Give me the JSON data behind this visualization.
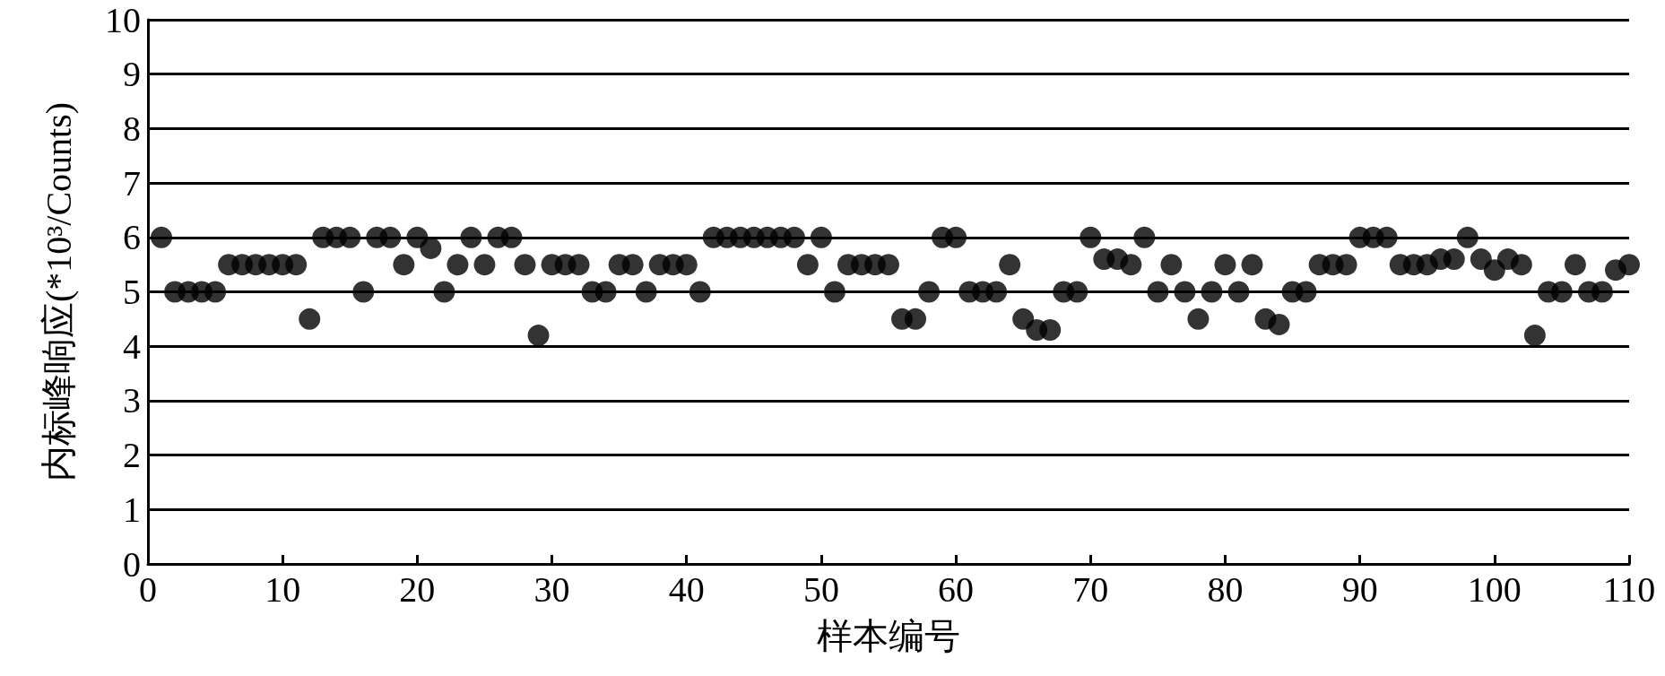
{
  "chart_data": {
    "type": "scatter",
    "xlabel": "样本编号",
    "ylabel": "内标峰响应(*10³/Counts)",
    "x": [
      1,
      2,
      3,
      4,
      5,
      6,
      7,
      8,
      9,
      10,
      11,
      12,
      13,
      14,
      15,
      16,
      17,
      18,
      19,
      20,
      21,
      22,
      23,
      24,
      25,
      26,
      27,
      28,
      29,
      30,
      31,
      32,
      33,
      34,
      35,
      36,
      37,
      38,
      39,
      40,
      41,
      42,
      43,
      44,
      45,
      46,
      47,
      48,
      49,
      50,
      51,
      52,
      53,
      54,
      55,
      56,
      57,
      58,
      59,
      60,
      61,
      62,
      63,
      64,
      65,
      66,
      67,
      68,
      69,
      70,
      71,
      72,
      73,
      74,
      75,
      76,
      77,
      78,
      79,
      80,
      81,
      82,
      83,
      84,
      85,
      86,
      87,
      88,
      89,
      90,
      91,
      92,
      93,
      94,
      95,
      96,
      97,
      98,
      99,
      100,
      101,
      102,
      103,
      104,
      105,
      106,
      107,
      108,
      109,
      110
    ],
    "values": [
      6,
      5,
      5,
      5,
      5,
      5.5,
      5.5,
      5.5,
      5.5,
      5.5,
      5.5,
      4.5,
      6,
      6,
      6,
      5,
      6,
      6,
      5.5,
      6,
      5.8,
      5,
      5.5,
      6,
      5.5,
      6,
      6,
      5.5,
      4.2,
      5.5,
      5.5,
      5.5,
      5,
      5,
      5.5,
      5.5,
      5,
      5.5,
      5.5,
      5.5,
      5,
      6,
      6,
      6,
      6,
      6,
      6,
      6,
      5.5,
      6,
      5,
      5.5,
      5.5,
      5.5,
      5.5,
      4.5,
      4.5,
      5,
      6,
      6,
      5,
      5,
      5,
      5.5,
      4.5,
      4.3,
      4.3,
      5,
      5,
      6,
      5.6,
      5.6,
      5.5,
      6,
      5,
      5.5,
      5,
      4.5,
      5,
      5.5,
      5,
      5.5,
      4.5,
      4.4,
      5,
      5,
      5.5,
      5.5,
      5.5,
      6,
      6,
      6,
      5.5,
      5.5,
      5.5,
      5.6,
      5.6,
      6,
      5.6,
      5.4,
      5.6,
      5.5,
      4.2,
      5,
      5,
      5.5,
      5,
      5,
      5.4,
      5.5
    ],
    "color": "#000000",
    "marker": "circle",
    "xlim": [
      0,
      110
    ],
    "xticks": [
      0,
      10,
      20,
      30,
      40,
      50,
      60,
      70,
      80,
      90,
      100,
      110
    ],
    "ylim": [
      0,
      10
    ],
    "yticks": [
      0,
      1,
      2,
      3,
      4,
      5,
      6,
      7,
      8,
      9,
      10
    ],
    "grid": "y"
  }
}
